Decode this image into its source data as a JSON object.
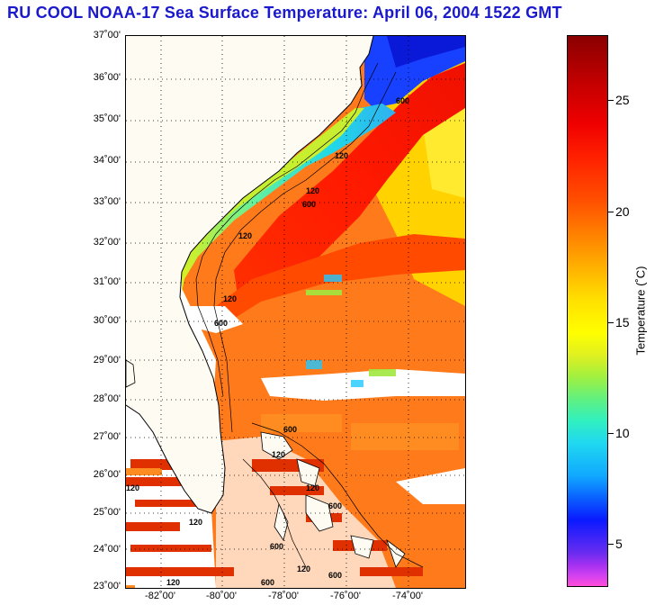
{
  "title": "RU COOL  NOAA-17  Sea Surface Temperature:  April 06, 2004 1522 GMT",
  "latitude_labels": [
    "37˚00'",
    "36˚00'",
    "35˚00'",
    "34˚00'",
    "33˚00'",
    "32˚00'",
    "31˚00'",
    "30˚00'",
    "29˚00'",
    "28˚00'",
    "27˚00'",
    "26˚00'",
    "25˚00'",
    "24˚00'",
    "23˚00'"
  ],
  "longitude_labels": [
    "-82˚00'",
    "-80˚00'",
    "-78˚00'",
    "-76˚00'",
    "-74˚00'"
  ],
  "colorbar": {
    "title": "Temperature (˚C)",
    "tick_labels": [
      "25",
      "20",
      "15",
      "10",
      "5"
    ]
  },
  "contour_labels": [
    "120",
    "600",
    "120",
    "600",
    "120",
    "120",
    "600",
    "120",
    "600",
    "120",
    "600",
    "120",
    "600",
    "120",
    "120",
    "600",
    "120",
    "600"
  ],
  "colors": {
    "title": "#1a1acc",
    "land": "#ffffff",
    "cloud": "#ffffff"
  }
}
